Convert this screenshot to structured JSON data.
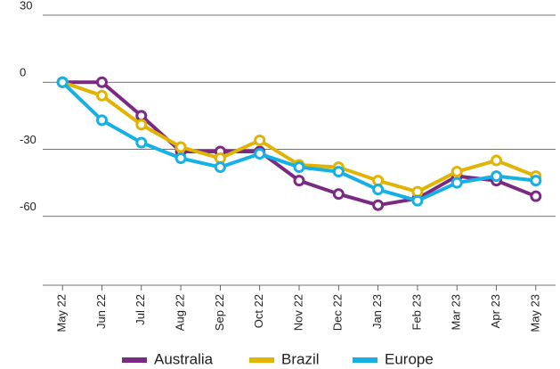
{
  "chart_data": {
    "type": "line",
    "categories": [
      "May 22",
      "Jun 22",
      "Jul 22",
      "Aug 22",
      "Sep 22",
      "Oct 22",
      "Nov 22",
      "Dec 22",
      "Jan 23",
      "Feb 23",
      "Mar 23",
      "Apr 23",
      "May 23"
    ],
    "series": [
      {
        "name": "Australia",
        "color": "#7b2a83",
        "values": [
          0,
          0,
          -15,
          -31,
          -31,
          -31,
          -44,
          -50,
          -55,
          -52,
          -42,
          -44,
          -51
        ]
      },
      {
        "name": "Brazil",
        "color": "#e0b400",
        "values": [
          0,
          -6,
          -19,
          -29,
          -34,
          -26,
          -37,
          -38,
          -44,
          -49,
          -40,
          -35,
          -42
        ]
      },
      {
        "name": "Europe",
        "color": "#16b0e4",
        "values": [
          0,
          -17,
          -27,
          -34,
          -38,
          -32,
          -38,
          -40,
          -48,
          -53,
          -45,
          -42,
          -44
        ]
      }
    ],
    "ylim": [
      -90,
      30
    ],
    "yticks": [
      -60,
      -30,
      0,
      30
    ],
    "grid": true,
    "legend": "bottom"
  }
}
